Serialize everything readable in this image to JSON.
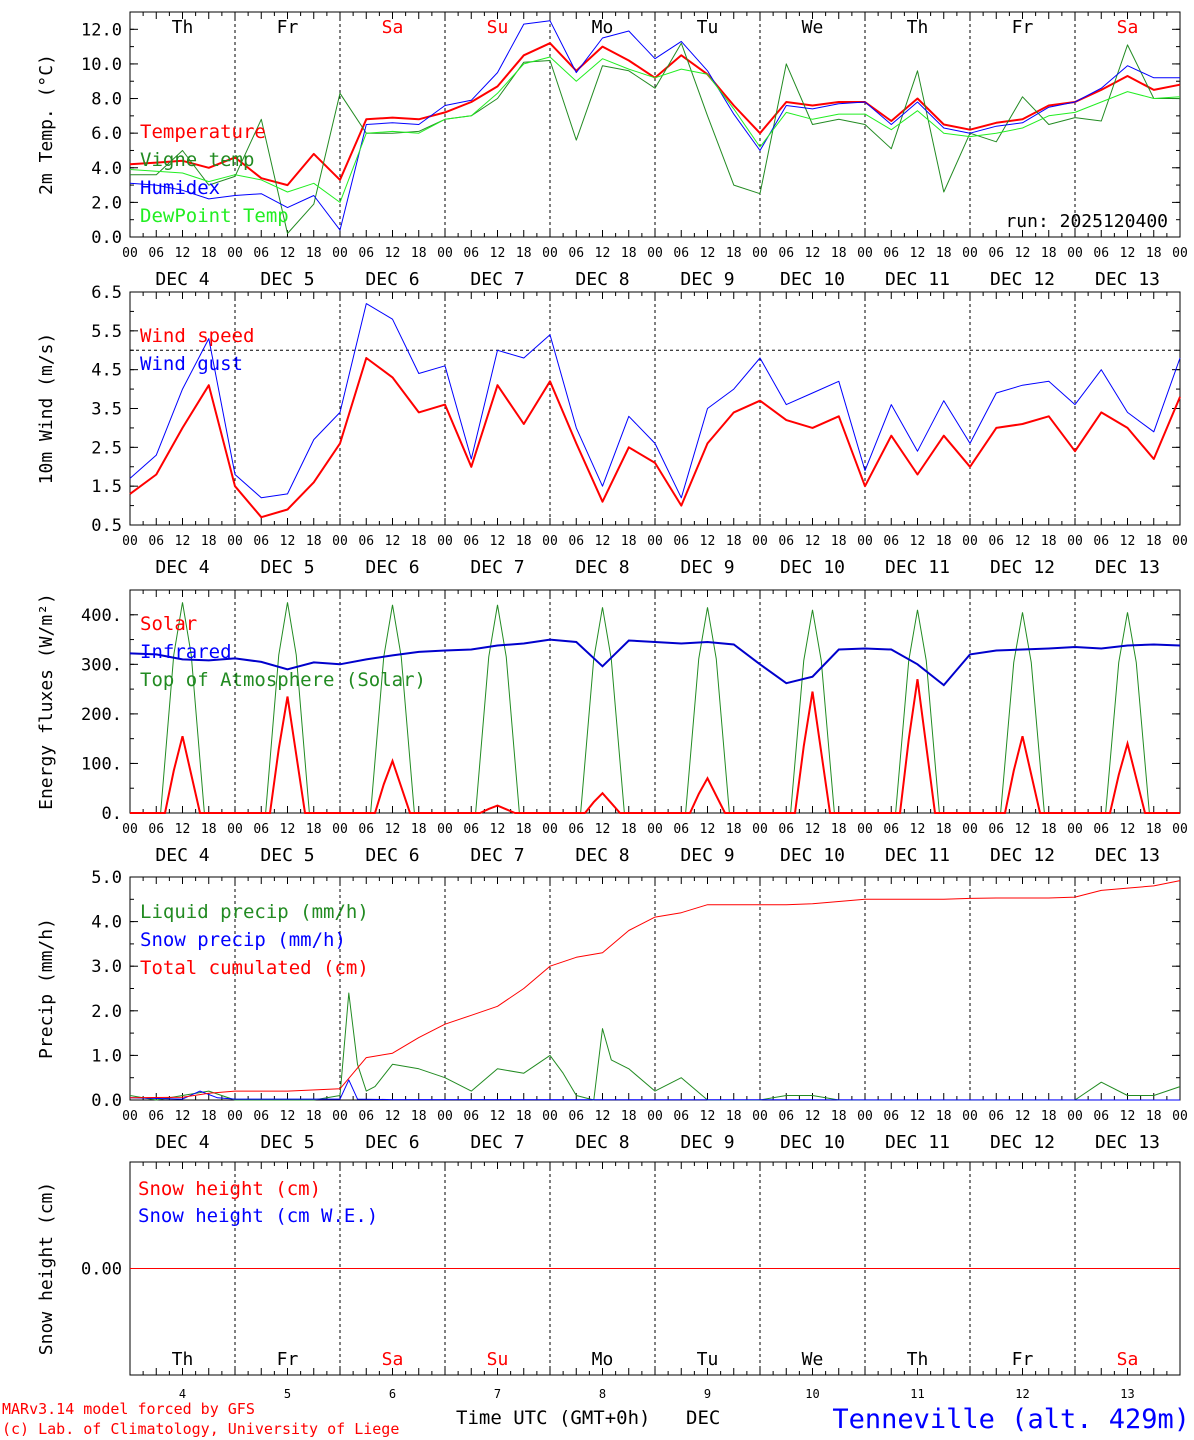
{
  "colors": {
    "red": "#ff0000",
    "green": "#228b22",
    "blue": "#0000ff",
    "lightgreen": "#22ee22",
    "navy": "#0000cc",
    "black": "#000000"
  },
  "days": {
    "weekdays": [
      "Th",
      "Fr",
      "Sa",
      "Su",
      "Mo",
      "Tu",
      "We",
      "Th",
      "Fr",
      "Sa"
    ],
    "weekend_flags": [
      false,
      false,
      true,
      true,
      false,
      false,
      false,
      false,
      false,
      true
    ],
    "date_labels": [
      "DEC  4",
      "DEC  5",
      "DEC  6",
      "DEC  7",
      "DEC  8",
      "DEC  9",
      "DEC 10",
      "DEC 11",
      "DEC 12",
      "DEC 13"
    ],
    "day_numbers": [
      "4",
      "5",
      "6",
      "7",
      "8",
      "9",
      "10",
      "11",
      "12",
      "13"
    ],
    "hour_ticks": [
      "00",
      "06",
      "12",
      "18"
    ],
    "final_tick": "00"
  },
  "footer": {
    "model_line": "MARv3.14 model forced by GFS",
    "credit_line": "(c) Lab. of Climatology, University of Liege",
    "time_label": "Time UTC (GMT+0h)",
    "month_label": "DEC",
    "station": "Tenneville (alt. 429m)"
  },
  "chart_data": [
    {
      "id": "temperature",
      "type": "line",
      "ylabel": "2m Temp. (°C)",
      "ylim": [
        0,
        13
      ],
      "yticks": [
        "0.0",
        "2.0",
        "4.0",
        "6.0",
        "8.0",
        "10.0",
        "12.0"
      ],
      "ytick_values": [
        0,
        2,
        4,
        6,
        8,
        10,
        12
      ],
      "run_label": "run: 2025120400",
      "legend": [
        "Temperature",
        "Vigne temp",
        "Humidex",
        "DewPoint Temp"
      ],
      "series": [
        {
          "name": "Temperature",
          "color": "red",
          "width": 2,
          "x": [
            0,
            6,
            12,
            18,
            24,
            30,
            36,
            42,
            48,
            54,
            60,
            66,
            72,
            78,
            84,
            90,
            96,
            102,
            108,
            114,
            120,
            126,
            132,
            138,
            144,
            150,
            156,
            162,
            168,
            174,
            180,
            186,
            192,
            198,
            204,
            210,
            216,
            222,
            228,
            234,
            240
          ],
          "values": [
            4.2,
            4.3,
            4.4,
            4.0,
            4.6,
            3.4,
            3.0,
            4.8,
            3.3,
            6.8,
            6.9,
            6.8,
            7.2,
            7.8,
            8.7,
            10.5,
            11.2,
            9.6,
            11.0,
            10.2,
            9.2,
            10.5,
            9.4,
            7.6,
            6.0,
            7.8,
            7.6,
            7.8,
            7.8,
            6.7,
            8.0,
            6.5,
            6.2,
            6.6,
            6.8,
            7.6,
            7.8,
            8.5,
            9.3,
            8.5,
            8.8
          ]
        },
        {
          "name": "Vigne temp",
          "color": "green",
          "width": 1,
          "x": [
            0,
            6,
            12,
            18,
            24,
            30,
            36,
            42,
            48,
            54,
            60,
            66,
            72,
            78,
            84,
            90,
            96,
            102,
            108,
            114,
            120,
            126,
            132,
            138,
            144,
            150,
            156,
            162,
            168,
            174,
            180,
            186,
            192,
            198,
            204,
            210,
            216,
            222,
            228,
            234,
            240
          ],
          "values": [
            3.6,
            3.6,
            5.0,
            3.0,
            3.5,
            6.8,
            0.2,
            1.9,
            8.3,
            6.0,
            6.0,
            6.1,
            6.8,
            7.0,
            8.0,
            10.1,
            10.2,
            5.6,
            9.9,
            9.6,
            8.6,
            11.2,
            7.0,
            3.0,
            2.5,
            10.0,
            6.5,
            6.8,
            6.5,
            5.1,
            9.6,
            2.6,
            6.0,
            5.5,
            8.1,
            6.5,
            6.9,
            6.7,
            11.1,
            8.0,
            8.0
          ]
        },
        {
          "name": "Humidex",
          "color": "blue",
          "width": 1,
          "x": [
            0,
            6,
            12,
            18,
            24,
            30,
            36,
            42,
            48,
            54,
            60,
            66,
            72,
            78,
            84,
            90,
            96,
            102,
            108,
            114,
            120,
            126,
            132,
            138,
            144,
            150,
            156,
            162,
            168,
            174,
            180,
            186,
            192,
            198,
            204,
            210,
            216,
            222,
            228,
            234,
            240
          ],
          "values": [
            3.1,
            3.0,
            2.7,
            2.2,
            2.4,
            2.5,
            1.7,
            2.4,
            0.4,
            6.5,
            6.6,
            6.5,
            7.6,
            7.9,
            9.5,
            12.3,
            12.5,
            9.5,
            11.5,
            11.9,
            10.3,
            11.3,
            9.6,
            7.1,
            5.0,
            7.6,
            7.4,
            7.7,
            7.8,
            6.5,
            7.8,
            6.3,
            6.0,
            6.4,
            6.6,
            7.5,
            7.8,
            8.6,
            9.9,
            9.2,
            9.2
          ]
        },
        {
          "name": "DewPoint Temp",
          "color": "lightgreen",
          "width": 1,
          "x": [
            0,
            6,
            12,
            18,
            24,
            30,
            36,
            42,
            48,
            54,
            60,
            66,
            72,
            78,
            84,
            90,
            96,
            102,
            108,
            114,
            120,
            126,
            132,
            138,
            144,
            150,
            156,
            162,
            168,
            174,
            180,
            186,
            192,
            198,
            204,
            210,
            216,
            222,
            228,
            234,
            240
          ],
          "values": [
            3.9,
            3.8,
            3.7,
            3.2,
            3.6,
            3.3,
            2.6,
            3.1,
            2.0,
            6.0,
            6.1,
            6.0,
            6.8,
            7.0,
            8.3,
            10.0,
            10.4,
            9.0,
            10.3,
            9.7,
            9.2,
            9.7,
            9.4,
            7.4,
            5.2,
            7.2,
            6.8,
            7.1,
            7.1,
            6.2,
            7.3,
            6.0,
            5.8,
            6.0,
            6.3,
            7.0,
            7.2,
            7.8,
            8.4,
            8.0,
            8.1
          ]
        }
      ]
    },
    {
      "id": "wind",
      "type": "line",
      "ylabel": "10m Wind (m/s)",
      "ylim": [
        0.5,
        6.5
      ],
      "yticks": [
        "0.5",
        "1.5",
        "2.5",
        "3.5",
        "4.5",
        "5.5",
        "6.5"
      ],
      "ytick_values": [
        0.5,
        1.5,
        2.5,
        3.5,
        4.5,
        5.5,
        6.5
      ],
      "ref_line": 5.0,
      "legend": [
        "Wind speed",
        "Wind gust"
      ],
      "series": [
        {
          "name": "Wind speed",
          "color": "red",
          "width": 2,
          "x": [
            0,
            6,
            12,
            18,
            24,
            30,
            36,
            42,
            48,
            54,
            60,
            66,
            72,
            78,
            84,
            90,
            96,
            102,
            108,
            114,
            120,
            126,
            132,
            138,
            144,
            150,
            156,
            162,
            168,
            174,
            180,
            186,
            192,
            198,
            204,
            210,
            216,
            222,
            228,
            234,
            240
          ],
          "values": [
            1.3,
            1.8,
            3.0,
            4.1,
            1.5,
            0.7,
            0.9,
            1.6,
            2.6,
            4.8,
            4.3,
            3.4,
            3.6,
            2.0,
            4.1,
            3.1,
            4.2,
            2.6,
            1.1,
            2.5,
            2.1,
            1.0,
            2.6,
            3.4,
            3.7,
            3.2,
            3.0,
            3.3,
            1.5,
            2.8,
            1.8,
            2.8,
            2.0,
            3.0,
            3.1,
            3.3,
            2.4,
            3.4,
            3.0,
            2.2,
            3.8
          ]
        },
        {
          "name": "Wind gust",
          "color": "blue",
          "width": 1,
          "x": [
            0,
            6,
            12,
            18,
            24,
            30,
            36,
            42,
            48,
            54,
            60,
            66,
            72,
            78,
            84,
            90,
            96,
            102,
            108,
            114,
            120,
            126,
            132,
            138,
            144,
            150,
            156,
            162,
            168,
            174,
            180,
            186,
            192,
            198,
            204,
            210,
            216,
            222,
            228,
            234,
            240
          ],
          "values": [
            1.7,
            2.3,
            4.0,
            5.3,
            1.8,
            1.2,
            1.3,
            2.7,
            3.4,
            6.2,
            5.8,
            4.4,
            4.6,
            2.2,
            5.0,
            4.8,
            5.4,
            3.0,
            1.5,
            3.3,
            2.6,
            1.2,
            3.5,
            4.0,
            4.8,
            3.6,
            3.9,
            4.2,
            1.9,
            3.6,
            2.4,
            3.7,
            2.6,
            3.9,
            4.1,
            4.2,
            3.6,
            4.5,
            3.4,
            2.9,
            4.8
          ]
        }
      ]
    },
    {
      "id": "energy",
      "type": "line",
      "ylabel": "Energy fluxes (W/m²)",
      "ylim": [
        0,
        450
      ],
      "yticks": [
        "0.",
        "100.",
        "200.",
        "300.",
        "400."
      ],
      "ytick_values": [
        0,
        100,
        200,
        300,
        400
      ],
      "legend": [
        "Solar",
        "Infrared",
        "Top of Atmosphere (Solar)"
      ],
      "daily_peaks": {
        "solar": [
          155,
          235,
          105,
          15,
          40,
          70,
          245,
          270,
          155,
          140
        ],
        "toa": [
          425,
          425,
          420,
          420,
          415,
          415,
          410,
          410,
          405,
          405
        ]
      },
      "infrared": {
        "x": [
          0,
          6,
          12,
          18,
          24,
          30,
          36,
          42,
          48,
          54,
          60,
          66,
          72,
          78,
          84,
          90,
          96,
          102,
          108,
          114,
          120,
          126,
          132,
          138,
          144,
          150,
          156,
          162,
          168,
          174,
          180,
          186,
          192,
          198,
          204,
          210,
          216,
          222,
          228,
          234,
          240
        ],
        "values": [
          322,
          320,
          310,
          308,
          312,
          305,
          290,
          304,
          300,
          310,
          318,
          325,
          328,
          330,
          338,
          342,
          350,
          345,
          296,
          348,
          345,
          342,
          345,
          340,
          300,
          262,
          275,
          330,
          332,
          330,
          300,
          258,
          320,
          328,
          330,
          332,
          335,
          332,
          338,
          340,
          338
        ]
      }
    },
    {
      "id": "precip",
      "type": "line",
      "ylabel": "Precip (mm/h)",
      "ylim": [
        0,
        5
      ],
      "yticks": [
        "0.0",
        "1.0",
        "2.0",
        "3.0",
        "4.0",
        "5.0"
      ],
      "ytick_values": [
        0,
        1,
        2,
        3,
        4,
        5
      ],
      "legend": [
        "Liquid precip (mm/h)",
        "Snow precip (mm/h)",
        "Total cumulated (cm)"
      ],
      "series": [
        {
          "name": "Liquid precip (mm/h)",
          "color": "green",
          "width": 1,
          "x": [
            0,
            6,
            12,
            18,
            24,
            30,
            36,
            42,
            48,
            50,
            52,
            54,
            56,
            60,
            66,
            72,
            78,
            84,
            90,
            96,
            99,
            102,
            106,
            108,
            110,
            114,
            120,
            126,
            132,
            138,
            144,
            150,
            156,
            162,
            168,
            174,
            180,
            186,
            192,
            198,
            204,
            210,
            216,
            222,
            228,
            234,
            240
          ],
          "values": [
            0.1,
            0.0,
            0.1,
            0.2,
            0.0,
            0.0,
            0.0,
            0.0,
            0.1,
            2.4,
            0.8,
            0.2,
            0.3,
            0.8,
            0.7,
            0.5,
            0.2,
            0.7,
            0.6,
            1.0,
            0.6,
            0.1,
            0.0,
            1.6,
            0.9,
            0.7,
            0.2,
            0.5,
            0.0,
            0.0,
            0.0,
            0.1,
            0.1,
            0.0,
            0.0,
            0.0,
            0.0,
            0.0,
            0.0,
            0.0,
            0.0,
            0.0,
            0.0,
            0.4,
            0.1,
            0.1,
            0.3
          ]
        },
        {
          "name": "Snow precip (mm/h)",
          "color": "blue",
          "width": 1,
          "x": [
            0,
            12,
            16,
            20,
            24,
            48,
            50,
            52,
            60,
            240
          ],
          "values": [
            0.05,
            0.02,
            0.2,
            0.05,
            0.02,
            0.02,
            0.45,
            0.02,
            0.01,
            0.0
          ]
        },
        {
          "name": "Total cumulated (cm)",
          "color": "red",
          "width": 1,
          "x": [
            0,
            12,
            18,
            24,
            36,
            48,
            54,
            60,
            66,
            72,
            78,
            84,
            90,
            96,
            102,
            108,
            114,
            120,
            126,
            132,
            138,
            144,
            150,
            156,
            162,
            168,
            174,
            180,
            186,
            192,
            198,
            204,
            210,
            216,
            222,
            228,
            234,
            240
          ],
          "values": [
            0.05,
            0.06,
            0.15,
            0.2,
            0.2,
            0.25,
            0.95,
            1.05,
            1.4,
            1.7,
            1.9,
            2.1,
            2.5,
            3.0,
            3.2,
            3.3,
            3.8,
            4.1,
            4.2,
            4.38,
            4.38,
            4.38,
            4.38,
            4.4,
            4.45,
            4.5,
            4.5,
            4.5,
            4.5,
            4.52,
            4.53,
            4.53,
            4.53,
            4.55,
            4.7,
            4.75,
            4.8,
            4.92
          ]
        }
      ]
    },
    {
      "id": "snow",
      "type": "line",
      "ylabel": "Snow height (cm)",
      "ylim": [
        -1,
        1
      ],
      "yticks": [
        "0.00"
      ],
      "ytick_values": [
        0
      ],
      "legend": [
        "Snow height (cm)",
        "Snow height (cm W.E.)"
      ],
      "series": [
        {
          "name": "Snow height (cm)",
          "color": "red",
          "width": 1,
          "x": [
            0,
            240
          ],
          "values": [
            0,
            0
          ]
        }
      ]
    }
  ]
}
